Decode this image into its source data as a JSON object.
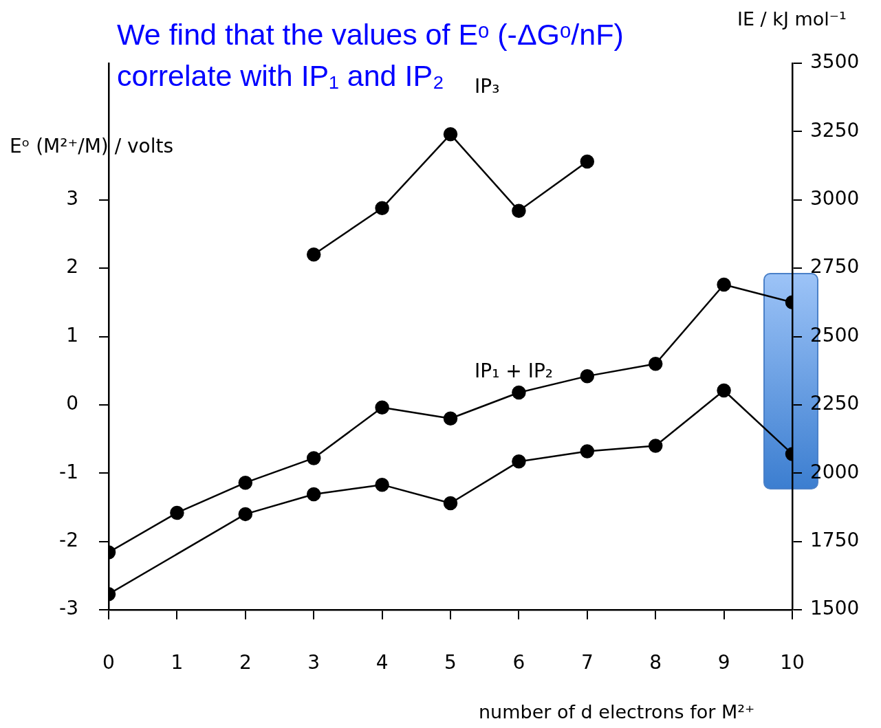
{
  "chart_data": {
    "type": "line",
    "title": "We find that the values of Eᵒ (-ΔGᵒ/nF) correlate with IP₁ and IP₂",
    "xlabel": "number of d electrons for M²⁺",
    "ylabel": "Eᵒ (M²⁺/M) / volts",
    "y2label": "IE / kJ mol⁻¹",
    "xlim": [
      0,
      10
    ],
    "xticks": [
      0,
      1,
      2,
      3,
      4,
      5,
      6,
      7,
      8,
      9,
      10
    ],
    "ylim": [
      -3,
      5
    ],
    "yticks": [
      -3,
      -2,
      -1,
      0,
      1,
      2,
      3
    ],
    "y2lim": [
      1500,
      3500
    ],
    "y2ticks": [
      1500,
      1750,
      2000,
      2250,
      2500,
      2750,
      3000,
      3250,
      3500
    ],
    "marker": "circle",
    "line_style": "solid",
    "series": [
      {
        "name": "IP₃",
        "color": "#000000",
        "axis": "y2",
        "x": [
          3,
          4,
          5,
          6,
          7
        ],
        "values": [
          2800,
          2970,
          3240,
          2960,
          3140
        ]
      },
      {
        "name": "IP₁ + IP₂",
        "color": "#000000",
        "axis": "y2",
        "x": [
          0,
          1,
          2,
          3,
          4,
          5,
          6,
          7,
          8,
          9,
          10
        ],
        "values": [
          1710,
          1855,
          1965,
          2055,
          2240,
          2200,
          2295,
          2355,
          2400,
          2690,
          2625
        ]
      },
      {
        "color": "#000000",
        "x": [
          0,
          2,
          3,
          4,
          5,
          6,
          7,
          8,
          9,
          10
        ],
        "values": [
          -2.77,
          -1.6,
          -1.31,
          -1.17,
          -1.44,
          -0.83,
          -0.68,
          -0.6,
          0.21,
          -0.72
        ]
      }
    ]
  }
}
